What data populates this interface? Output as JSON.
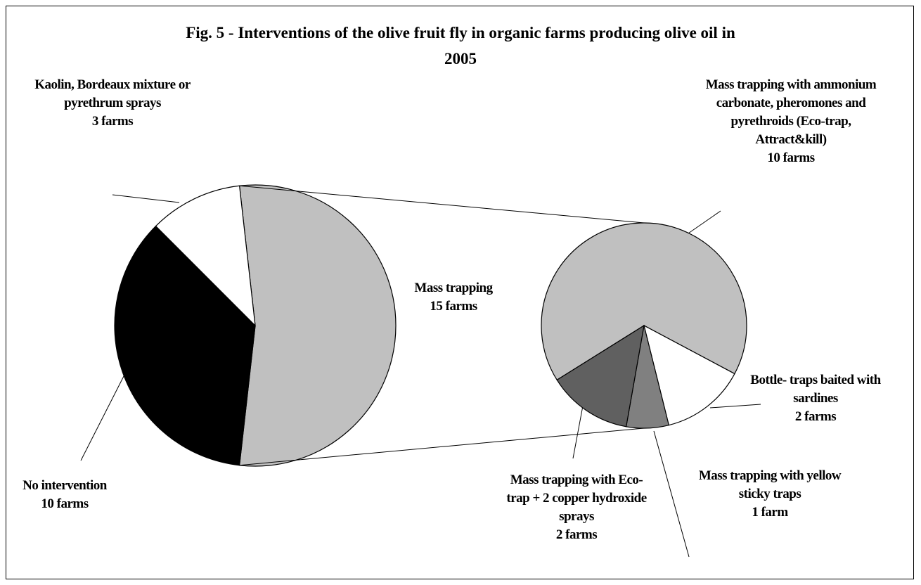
{
  "chart_data": {
    "type": "pie",
    "title": "Fig. 5 - Interventions of the olive fruit fly in organic farms producing olive oil in 2005",
    "pies": [
      {
        "categories": [
          "Mass trapping",
          "No intervention",
          "Kaolin, Bordeaux mixture or pyrethrum sprays"
        ],
        "values": [
          15,
          10,
          3
        ],
        "value_labels": [
          "15 farms",
          "10 farms",
          "3 farms"
        ],
        "colors": [
          "#c0c0c0",
          "#000000",
          "#ffffff"
        ]
      },
      {
        "categories": [
          "Mass trapping with ammonium carbonate, pheromones and pyrethroids (Eco-trap, Attract&kill)",
          "Bottle- traps baited with sardines",
          "Mass trapping with yellow sticky traps",
          "Mass trapping with Eco-trap + 2 copper hydroxide sprays"
        ],
        "values": [
          10,
          2,
          1,
          2
        ],
        "value_labels": [
          "10 farms",
          "2 farms",
          "1 farm",
          "2 farms"
        ],
        "colors": [
          "#c0c0c0",
          "#ffffff",
          "#808080",
          "#606060"
        ]
      }
    ]
  }
}
